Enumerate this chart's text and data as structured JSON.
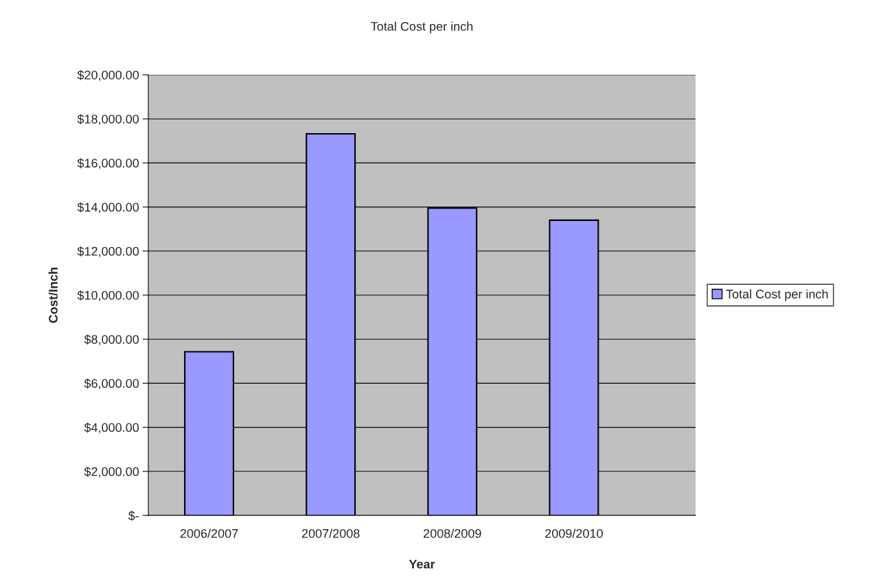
{
  "chart_data": {
    "type": "bar",
    "title": "Total Cost per inch",
    "xlabel": "Year",
    "ylabel": "Cost/Inch",
    "categories": [
      "2006/2007",
      "2007/2008",
      "2008/2009",
      "2009/2010"
    ],
    "series": [
      {
        "name": "Total Cost per inch",
        "color": "#9999ff",
        "values": [
          7430,
          17320,
          13950,
          13400
        ]
      }
    ],
    "ylim": [
      0,
      20000
    ],
    "yticks": [
      {
        "value": 0,
        "label": "$-"
      },
      {
        "value": 2000,
        "label": "$2,000.00"
      },
      {
        "value": 4000,
        "label": "$4,000.00"
      },
      {
        "value": 6000,
        "label": "$6,000.00"
      },
      {
        "value": 8000,
        "label": "$8,000.00"
      },
      {
        "value": 10000,
        "label": "$10,000.00"
      },
      {
        "value": 12000,
        "label": "$12,000.00"
      },
      {
        "value": 14000,
        "label": "$14,000.00"
      },
      {
        "value": 16000,
        "label": "$16,000.00"
      },
      {
        "value": 18000,
        "label": "$18,000.00"
      },
      {
        "value": 20000,
        "label": "$20,000.00"
      }
    ],
    "grid": "y",
    "legend": "right"
  }
}
